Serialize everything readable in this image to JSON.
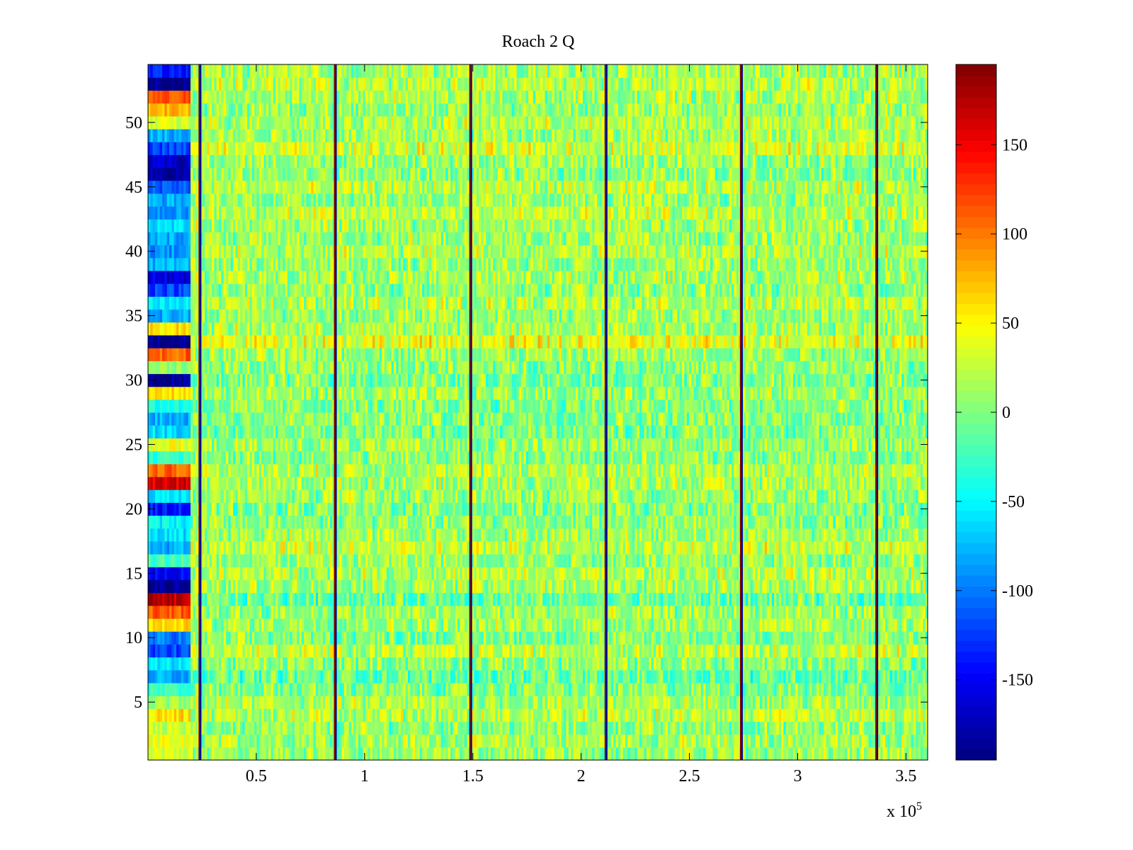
{
  "chart_data": {
    "type": "heatmap",
    "title": "Roach 2 Q",
    "xlabel": "",
    "ylabel": "",
    "x_exponent_base": "x 10",
    "x_exponent_power": "5",
    "xlim": [
      0,
      3.6
    ],
    "ylim": [
      0.5,
      54.5
    ],
    "n_channels": 54,
    "x_ticks": [
      0.5,
      1,
      1.5,
      2,
      2.5,
      3,
      3.5
    ],
    "x_tick_labels": [
      "0.5",
      "1",
      "1.5",
      "2",
      "2.5",
      "3",
      "3.5"
    ],
    "y_ticks": [
      5,
      10,
      15,
      20,
      25,
      30,
      35,
      40,
      45,
      50
    ],
    "y_tick_labels": [
      "5",
      "10",
      "15",
      "20",
      "25",
      "30",
      "35",
      "40",
      "45",
      "50"
    ],
    "colorbar": {
      "colormap": "jet",
      "limits": [
        -195,
        195
      ],
      "ticks": [
        -150,
        -100,
        -50,
        0,
        50,
        100,
        150
      ],
      "tick_labels": [
        "-150",
        "-100",
        "-50",
        "0",
        "50",
        "100",
        "150"
      ]
    },
    "vertical_discontinuities_x": [
      0.24,
      0.865,
      1.49,
      2.115,
      2.74,
      3.365
    ],
    "initial_segment": {
      "x_range": [
        0,
        0.2
      ],
      "row_values": [
        30,
        40,
        25,
        60,
        10,
        -30,
        -80,
        -60,
        -120,
        -100,
        60,
        110,
        170,
        -190,
        -150,
        -20,
        -80,
        -60,
        -50,
        -140,
        -60,
        160,
        110,
        -30,
        40,
        -60,
        -80,
        -40,
        60,
        -190,
        10,
        110,
        -190,
        60,
        -80,
        -60,
        -120,
        -160,
        -80,
        -90,
        -80,
        -60,
        -90,
        -80,
        -110,
        -180,
        -170,
        -120,
        -80,
        30,
        80,
        110,
        -190,
        -140
      ]
    },
    "row_bias": [
      10,
      15,
      5,
      20,
      15,
      0,
      -10,
      5,
      25,
      0,
      15,
      10,
      -10,
      15,
      20,
      10,
      25,
      15,
      5,
      0,
      10,
      15,
      20,
      5,
      10,
      0,
      5,
      0,
      10,
      0,
      5,
      10,
      40,
      15,
      10,
      20,
      5,
      15,
      10,
      20,
      10,
      15,
      25,
      10,
      20,
      5,
      10,
      30,
      15,
      20,
      10,
      15,
      20,
      15
    ]
  }
}
